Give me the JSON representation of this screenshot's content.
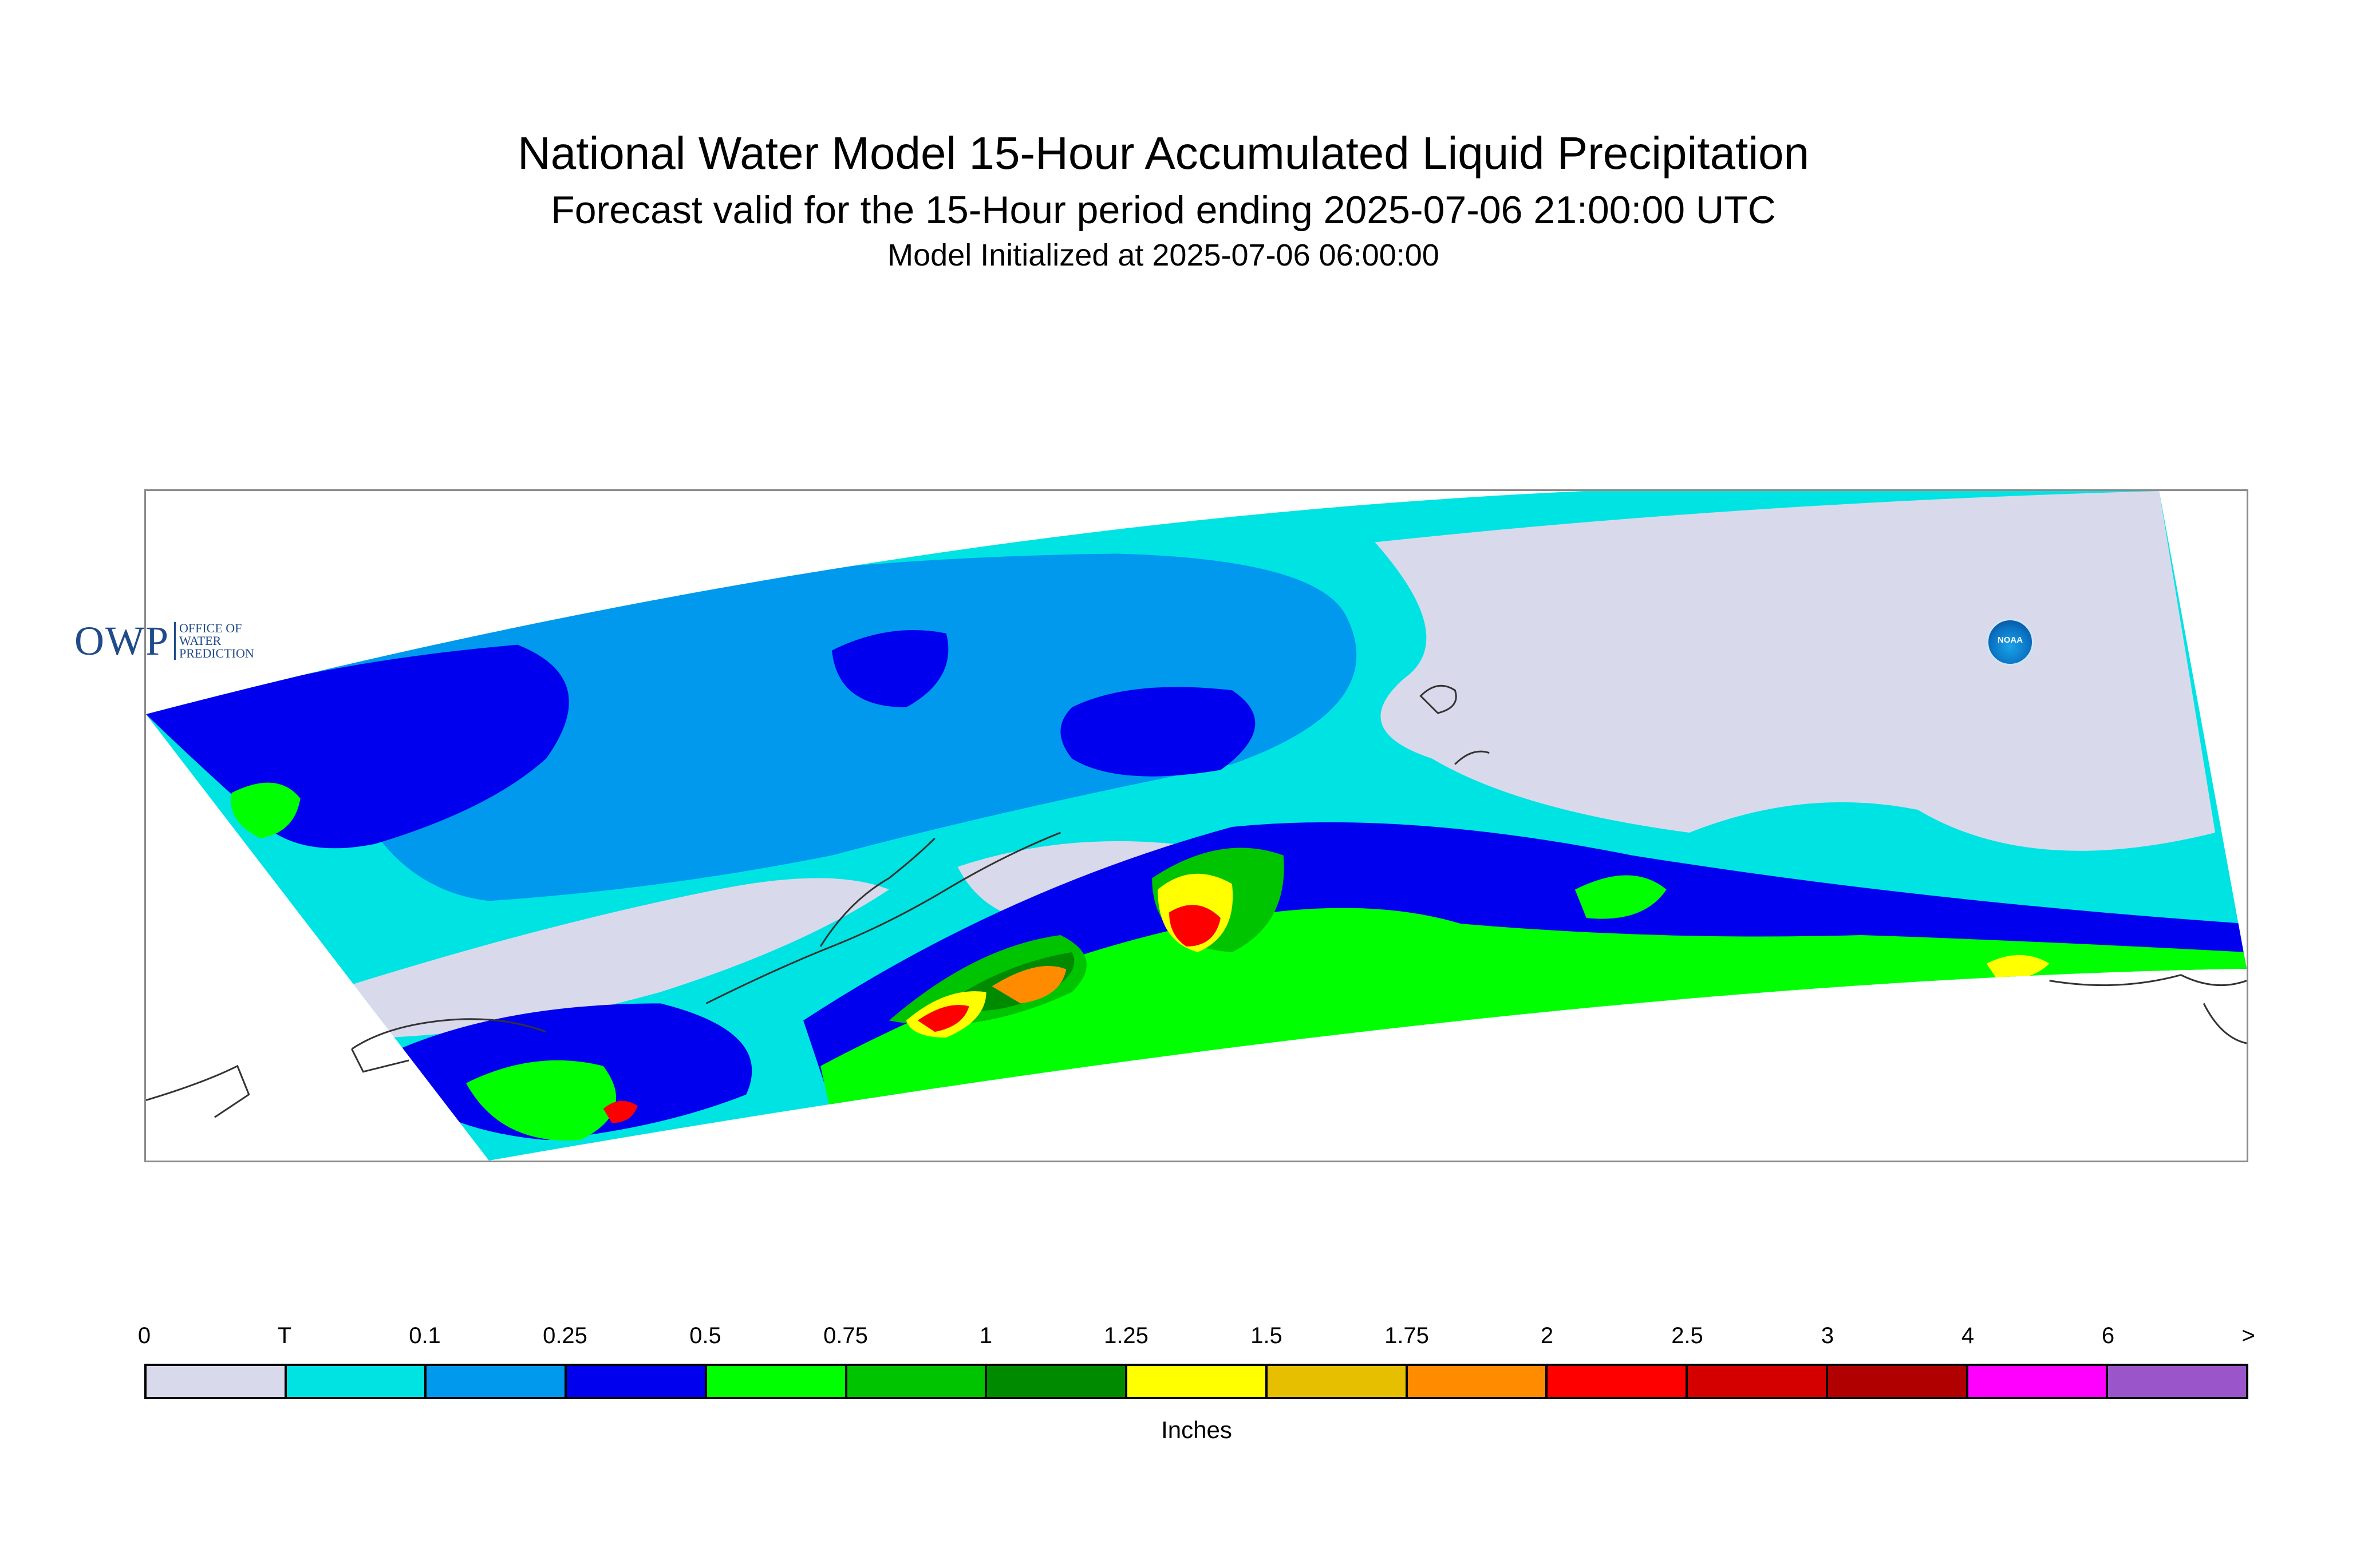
{
  "title": "National Water Model 15-Hour Accumulated Liquid Precipitation",
  "subtitle": "Forecast valid for the 15-Hour period ending 2025-07-06 21:00:00 UTC",
  "initialized": "Model Initialized at 2025-07-06 06:00:00",
  "logos": {
    "owp_mark": "OWP",
    "owp_lines": [
      "OFFICE OF",
      "WATER",
      "PREDICTION"
    ],
    "noaa": "NOAA"
  },
  "legend": {
    "units": "Inches",
    "tick_labels": [
      "0",
      "T",
      "0.1",
      "0.25",
      "0.5",
      "0.75",
      "1",
      "1.25",
      "1.5",
      "1.75",
      "2",
      "2.5",
      "3",
      "4",
      "6",
      ">"
    ],
    "colors": [
      "#d9d9ec",
      "#00e3e3",
      "#0099ee",
      "#0000ee",
      "#00ff00",
      "#00c400",
      "#008a00",
      "#ffff00",
      "#e6bf00",
      "#ff8c00",
      "#ff0000",
      "#d40000",
      "#b00000",
      "#ff00ff",
      "#9955c9"
    ]
  },
  "map_colors": {
    "none": "#d9d9ec",
    "trace": "#00e3e3",
    "light": "#0099ee",
    "moderate": "#0000ee",
    "green": "#00ff00",
    "green2": "#00c400",
    "green3": "#008a00",
    "yellow": "#ffff00",
    "orange": "#ff8c00",
    "red": "#ff0000",
    "coast": "#333333"
  }
}
